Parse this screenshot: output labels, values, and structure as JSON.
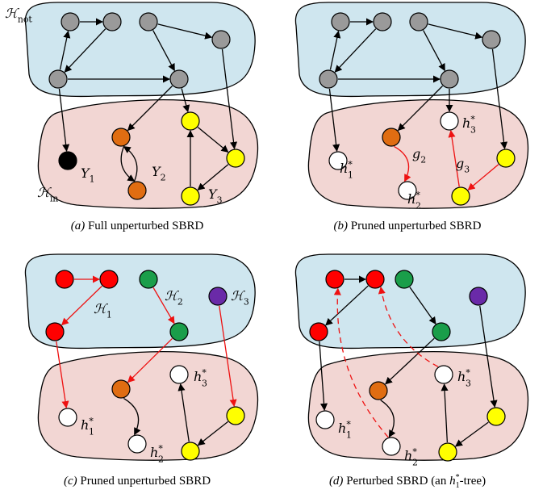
{
  "colors": {
    "h_not_fill": "#cfe6ef",
    "h_in_fill": "#f2d6d3",
    "gray": "#9a9a9a",
    "orange": "#e06d12",
    "yellow": "#ffff00",
    "black": "#000000",
    "white": "#ffffff",
    "red": "#ff0000",
    "green": "#1a9e4a",
    "purple": "#6a2aa8",
    "edge_black": "#000000",
    "edge_red": "#ee1111"
  },
  "panels": [
    {
      "id": "a",
      "caption": {
        "letter": "(a)",
        "text": "Full unperturbed SBRD"
      },
      "region_labels": [
        {
          "key": "H_not",
          "base": "ℋ",
          "sub": "not"
        },
        {
          "key": "H_in",
          "base": "ℋ",
          "sub": "in"
        }
      ],
      "node_labels": [
        {
          "base": "Y",
          "sub": "1"
        },
        {
          "base": "Y",
          "sub": "2"
        },
        {
          "base": "Y",
          "sub": "3"
        }
      ]
    },
    {
      "id": "b",
      "caption": {
        "letter": "(b)",
        "text": "Pruned unperturbed SBRD"
      },
      "node_labels": [
        {
          "base": "h",
          "sub": "1",
          "sup": "*"
        },
        {
          "base": "h",
          "sub": "2",
          "sup": "*"
        },
        {
          "base": "h",
          "sub": "3",
          "sup": "*"
        }
      ],
      "edge_labels": [
        {
          "base": "g",
          "sub": "2"
        },
        {
          "base": "g",
          "sub": "3"
        }
      ]
    },
    {
      "id": "c",
      "caption": {
        "letter": "(c)",
        "text": "Pruned unperturbed SBRD"
      },
      "region_labels": [
        {
          "base": "ℋ",
          "sub": "1"
        },
        {
          "base": "ℋ",
          "sub": "2"
        },
        {
          "base": "ℋ",
          "sub": "3"
        }
      ],
      "node_labels": [
        {
          "base": "h",
          "sub": "1",
          "sup": "*"
        },
        {
          "base": "h",
          "sub": "2",
          "sup": "*"
        },
        {
          "base": "h",
          "sub": "3",
          "sup": "*"
        }
      ]
    },
    {
      "id": "d",
      "caption": {
        "letter": "(d)",
        "text_before": "Perturbed SBRD (an ",
        "math": {
          "base": "h",
          "sub": "1",
          "sup": "*"
        },
        "text_after": "-tree)"
      },
      "node_labels": [
        {
          "base": "h",
          "sub": "1",
          "sup": "*"
        },
        {
          "base": "h",
          "sub": "2",
          "sup": "*"
        },
        {
          "base": "h",
          "sub": "3",
          "sup": "*"
        }
      ]
    }
  ]
}
